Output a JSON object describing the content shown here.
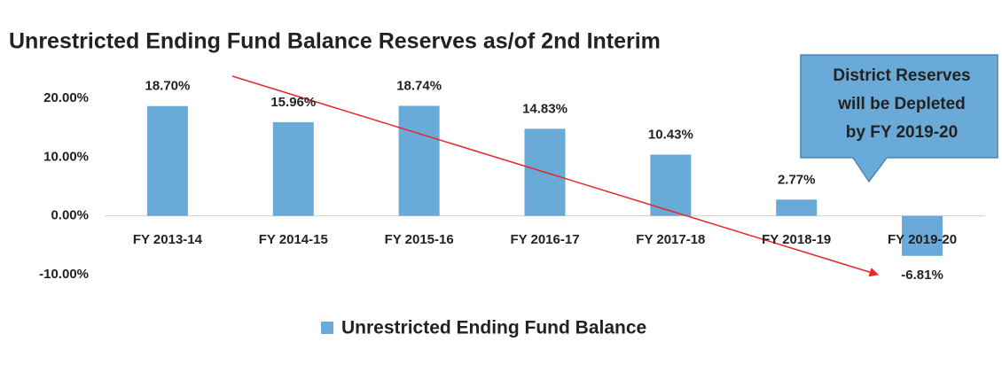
{
  "chart_data": {
    "type": "bar",
    "title": "Unrestricted Ending Fund Balance Reserves as/of 2nd Interim",
    "categories": [
      "FY 2013-14",
      "FY 2014-15",
      "FY 2015-16",
      "FY 2016-17",
      "FY 2017-18",
      "FY 2018-19",
      "FY 2019-20"
    ],
    "series": [
      {
        "name": "Unrestricted Ending Fund Balance",
        "color": "#6aaad8",
        "values": [
          18.7,
          15.96,
          18.74,
          14.83,
          10.43,
          2.77,
          -6.81
        ],
        "value_labels": [
          "18.70%",
          "15.96%",
          "18.74%",
          "14.83%",
          "10.43%",
          "2.77%",
          "-6.81%"
        ]
      }
    ],
    "negative_label_color": "#e8262a",
    "ylim": [
      -13,
      25
    ],
    "yticks": [
      {
        "value": -10,
        "label": "-10.00%"
      },
      {
        "value": 0,
        "label": "0.00%"
      },
      {
        "value": 10,
        "label": "10.00%"
      },
      {
        "value": 20,
        "label": "20.00%"
      }
    ],
    "grid": false,
    "legend": "bottom",
    "annotation": [
      "District Reserves",
      "will be Depleted",
      "by FY 2019-20"
    ]
  }
}
